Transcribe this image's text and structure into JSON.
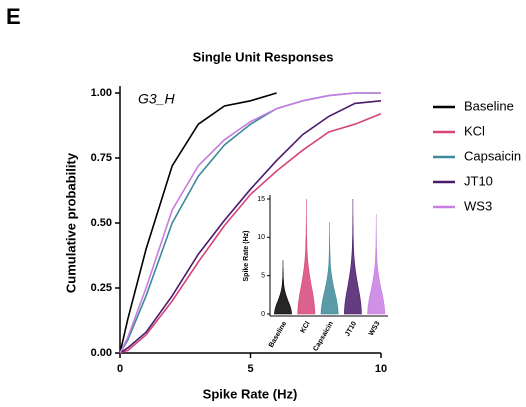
{
  "panel_label": "E",
  "chart_data": [
    {
      "type": "line",
      "title": "Single Unit Responses",
      "annotation": "G3_H",
      "x_label": "Spike Rate (Hz)",
      "y_label": "Cumulative probability",
      "x": [
        0,
        0.3,
        1,
        2,
        3,
        4,
        5,
        6,
        7,
        8,
        9,
        10
      ],
      "xlim": [
        0,
        10
      ],
      "xticks": [
        0,
        5,
        10
      ],
      "ylim": [
        0,
        1
      ],
      "yticks": [
        {
          "value": 0,
          "label": "0.00"
        },
        {
          "value": 0.25,
          "label": "0.25"
        },
        {
          "value": 0.5,
          "label": "0.50"
        },
        {
          "value": 0.75,
          "label": "0.75"
        },
        {
          "value": 1,
          "label": "1.00"
        }
      ],
      "legend": "right",
      "series": [
        {
          "name": "Baseline",
          "color": "#000000",
          "values": [
            0,
            0.13,
            0.4,
            0.72,
            0.88,
            0.95,
            0.97,
            1.0,
            null,
            null,
            null,
            null
          ]
        },
        {
          "name": "KCl",
          "color": "#d6457a",
          "values": [
            0,
            0.01,
            0.07,
            0.2,
            0.35,
            0.49,
            0.61,
            0.7,
            0.78,
            0.85,
            0.88,
            0.92
          ]
        },
        {
          "name": "Capsaicin",
          "color": "#3e8a99",
          "values": [
            0,
            0.05,
            0.22,
            0.5,
            0.68,
            0.8,
            0.88,
            0.94,
            0.97,
            0.99,
            1.0,
            1.0
          ]
        },
        {
          "name": "JT10",
          "color": "#4b1a6b",
          "values": [
            0,
            0.02,
            0.08,
            0.22,
            0.38,
            0.51,
            0.63,
            0.74,
            0.84,
            0.91,
            0.96,
            0.97
          ]
        },
        {
          "name": "WS3",
          "color": "#c77ee0",
          "values": [
            0,
            0.06,
            0.25,
            0.55,
            0.72,
            0.82,
            0.89,
            0.94,
            0.97,
            0.99,
            1.0,
            1.0
          ]
        }
      ]
    },
    {
      "type": "violin",
      "y_label": "Spike Rate (Hz)",
      "categories": [
        "Baseline",
        "KCl",
        "Capsaicin",
        "JT10",
        "WS3"
      ],
      "values": [
        7,
        15,
        12,
        15,
        13
      ],
      "colors": [
        "#000000",
        "#d6457a",
        "#3e8a99",
        "#4b1a6b",
        "#c77ee0"
      ],
      "ylim": [
        0,
        15
      ],
      "yticks": [
        0,
        5,
        10,
        15
      ]
    }
  ]
}
